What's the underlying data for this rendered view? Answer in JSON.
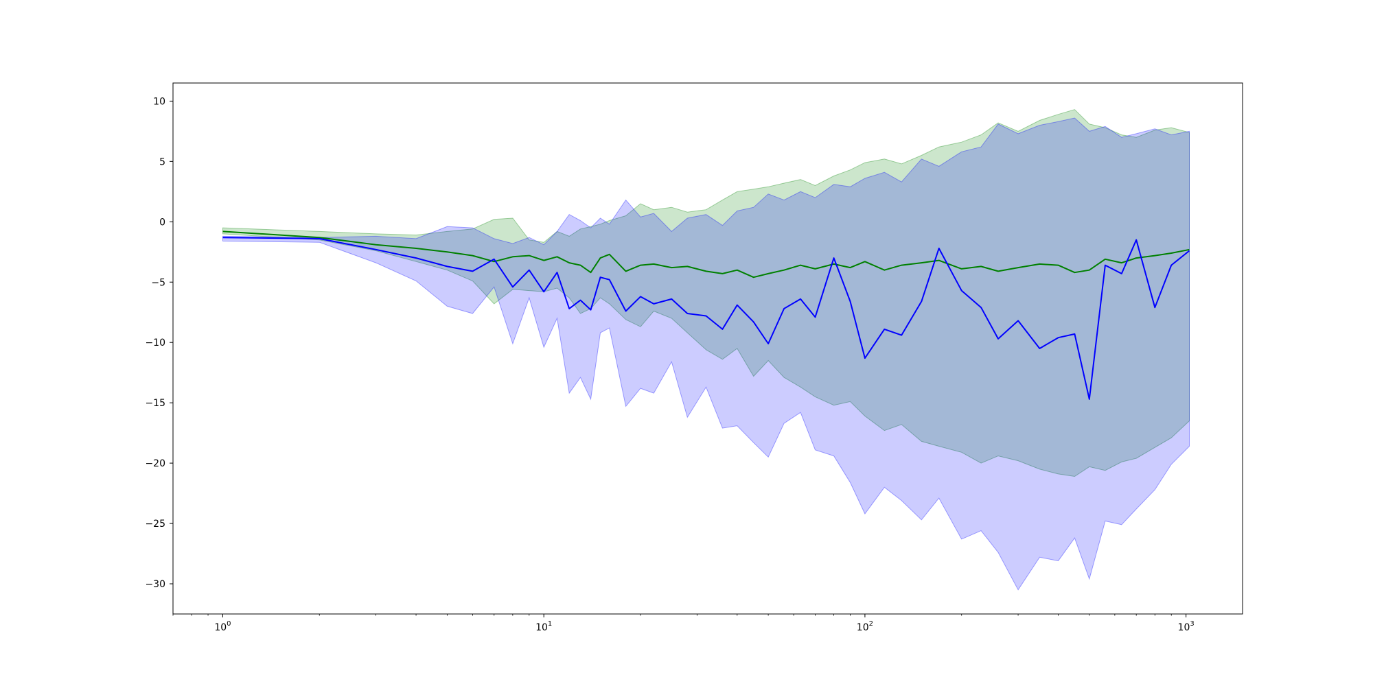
{
  "chart_data": {
    "type": "line",
    "xscale": "log",
    "xlim": [
      0.7,
      1500
    ],
    "ylim": [
      -32.5,
      11.5
    ],
    "grid": false,
    "legend": "none",
    "xticks": [
      {
        "value": 1,
        "base": "10",
        "exp": "0"
      },
      {
        "value": 10,
        "base": "10",
        "exp": "1"
      },
      {
        "value": 100,
        "base": "10",
        "exp": "2"
      },
      {
        "value": 1000,
        "base": "10",
        "exp": "3"
      }
    ],
    "yticks": [
      {
        "value": 10,
        "label": "10"
      },
      {
        "value": 5,
        "label": "5"
      },
      {
        "value": 0,
        "label": "0"
      },
      {
        "value": -5,
        "label": "−5"
      },
      {
        "value": -10,
        "label": "−10"
      },
      {
        "value": -15,
        "label": "−15"
      },
      {
        "value": -20,
        "label": "−20"
      },
      {
        "value": -25,
        "label": "−25"
      },
      {
        "value": -30,
        "label": "−30"
      }
    ],
    "series": [
      {
        "color": "#008000",
        "band_color": "#008000",
        "band_opacity": 0.2,
        "x": [
          1,
          2,
          3,
          4,
          5,
          6,
          7,
          8,
          9,
          10,
          11,
          12,
          13,
          14,
          15,
          16,
          18,
          20,
          22,
          25,
          28,
          32,
          36,
          40,
          45,
          50,
          56,
          63,
          70,
          80,
          90,
          100,
          115,
          130,
          150,
          170,
          200,
          230,
          260,
          300,
          350,
          400,
          450,
          500,
          560,
          630,
          700,
          800,
          900,
          1024
        ],
        "mean": [
          -0.8,
          -1.3,
          -1.9,
          -2.2,
          -2.5,
          -2.8,
          -3.3,
          -2.9,
          -2.8,
          -3.2,
          -2.9,
          -3.4,
          -3.6,
          -4.2,
          -3.0,
          -2.7,
          -4.1,
          -3.6,
          -3.5,
          -3.8,
          -3.7,
          -4.1,
          -4.3,
          -4.0,
          -4.6,
          -4.3,
          -4.0,
          -3.6,
          -3.9,
          -3.5,
          -3.8,
          -3.3,
          -4.0,
          -3.6,
          -3.4,
          -3.2,
          -3.9,
          -3.7,
          -4.1,
          -3.8,
          -3.5,
          -3.6,
          -4.2,
          -4.0,
          -3.1,
          -3.4,
          -3.0,
          -2.8,
          -2.6,
          -2.3
        ],
        "upper": [
          -0.5,
          -0.8,
          -1.0,
          -1.1,
          -0.8,
          -0.6,
          0.2,
          0.3,
          -1.5,
          -1.7,
          -0.8,
          -1.2,
          -0.6,
          -0.4,
          -0.2,
          0.1,
          0.5,
          1.5,
          1.0,
          1.2,
          0.8,
          1.0,
          1.8,
          2.5,
          2.7,
          2.9,
          3.2,
          3.5,
          3.0,
          3.8,
          4.3,
          4.9,
          5.2,
          4.8,
          5.5,
          6.2,
          6.6,
          7.2,
          8.2,
          7.5,
          8.4,
          8.9,
          9.3,
          8.1,
          7.8,
          7.2,
          7.0,
          7.6,
          7.8,
          7.4
        ],
        "lower": [
          -1.0,
          -1.5,
          -2.4,
          -3.3,
          -4.0,
          -4.9,
          -6.8,
          -5.6,
          -5.7,
          -5.8,
          -5.5,
          -6.3,
          -7.6,
          -7.2,
          -6.3,
          -6.8,
          -8.1,
          -8.7,
          -7.4,
          -8.0,
          -9.2,
          -10.6,
          -11.4,
          -10.5,
          -12.8,
          -11.5,
          -12.9,
          -13.7,
          -14.5,
          -15.2,
          -14.9,
          -16.1,
          -17.3,
          -16.8,
          -18.2,
          -18.6,
          -19.1,
          -20.0,
          -19.4,
          -19.8,
          -20.5,
          -20.9,
          -21.1,
          -20.3,
          -20.6,
          -19.9,
          -19.6,
          -18.7,
          -17.9,
          -16.5
        ]
      },
      {
        "color": "#0000ff",
        "band_color": "#0000ff",
        "band_opacity": 0.2,
        "x": [
          1,
          2,
          3,
          4,
          5,
          6,
          7,
          8,
          9,
          10,
          11,
          12,
          13,
          14,
          15,
          16,
          18,
          20,
          22,
          25,
          28,
          32,
          36,
          40,
          45,
          50,
          56,
          63,
          70,
          80,
          90,
          100,
          115,
          130,
          150,
          170,
          200,
          230,
          260,
          300,
          350,
          400,
          450,
          500,
          560,
          630,
          700,
          800,
          900,
          1024
        ],
        "mean": [
          -1.3,
          -1.4,
          -2.3,
          -3.0,
          -3.7,
          -4.1,
          -3.1,
          -5.4,
          -4.0,
          -5.8,
          -4.2,
          -7.2,
          -6.5,
          -7.3,
          -4.6,
          -4.8,
          -7.4,
          -6.2,
          -6.8,
          -6.4,
          -7.6,
          -7.8,
          -8.9,
          -6.9,
          -8.3,
          -10.1,
          -7.2,
          -6.4,
          -7.9,
          -3.0,
          -6.6,
          -11.3,
          -8.9,
          -9.4,
          -6.6,
          -2.2,
          -5.7,
          -7.1,
          -9.7,
          -8.2,
          -10.5,
          -9.6,
          -9.3,
          -14.7,
          -3.6,
          -4.3,
          -1.5,
          -7.1,
          -3.6,
          -2.4
        ],
        "upper": [
          -1.2,
          -1.3,
          -1.2,
          -1.4,
          -0.4,
          -0.5,
          -1.4,
          -1.8,
          -1.3,
          -1.9,
          -0.8,
          0.6,
          0.1,
          -0.5,
          0.3,
          -0.2,
          1.8,
          0.4,
          0.7,
          -0.8,
          0.3,
          0.6,
          -0.3,
          0.9,
          1.2,
          2.3,
          1.8,
          2.5,
          2.0,
          3.1,
          2.9,
          3.6,
          4.1,
          3.3,
          5.2,
          4.6,
          5.8,
          6.2,
          8.1,
          7.3,
          8.0,
          8.3,
          8.6,
          7.5,
          7.9,
          7.0,
          7.3,
          7.7,
          7.2,
          7.5
        ],
        "lower": [
          -1.6,
          -1.7,
          -3.4,
          -4.9,
          -7.0,
          -7.6,
          -5.4,
          -10.1,
          -6.3,
          -10.4,
          -8.0,
          -14.2,
          -12.9,
          -14.7,
          -9.2,
          -8.8,
          -15.3,
          -13.8,
          -14.2,
          -11.6,
          -16.2,
          -13.7,
          -17.1,
          -16.9,
          -18.3,
          -19.5,
          -16.7,
          -15.8,
          -18.9,
          -19.4,
          -21.6,
          -24.2,
          -22.0,
          -23.1,
          -24.7,
          -22.9,
          -26.3,
          -25.6,
          -27.4,
          -30.5,
          -27.8,
          -28.1,
          -26.2,
          -29.6,
          -24.8,
          -25.1,
          -23.8,
          -22.2,
          -20.1,
          -18.6
        ]
      }
    ]
  }
}
